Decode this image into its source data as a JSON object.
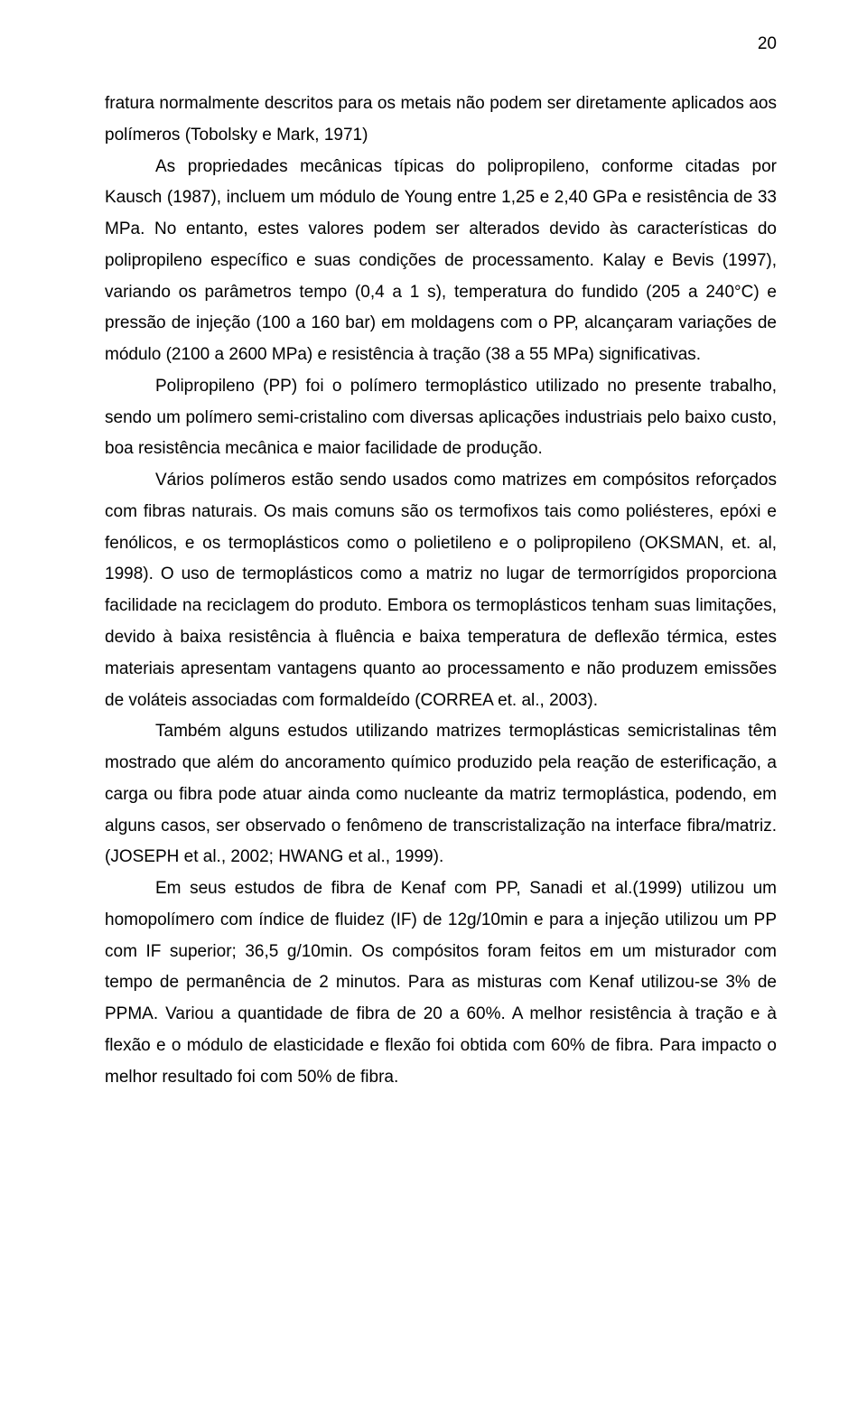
{
  "page_number": "20",
  "paragraphs": {
    "p1": "fratura normalmente descritos para os metais não podem ser diretamente aplicados aos polímeros (Tobolsky e Mark, 1971)",
    "p2": "As propriedades mecânicas típicas do polipropileno, conforme citadas por Kausch (1987), incluem um módulo de Young entre 1,25 e 2,40 GPa e resistência de 33 MPa. No entanto, estes valores podem ser alterados devido às características do polipropileno específico e suas condições de processamento. Kalay e Bevis (1997), variando os parâmetros tempo (0,4 a 1 s), temperatura do fundido (205 a 240°C) e pressão de injeção (100 a 160 bar) em moldagens com o PP, alcançaram variações de módulo (2100 a 2600 MPa) e resistência à tração (38 a 55 MPa) significativas.",
    "p3": "Polipropileno (PP) foi o polímero termoplástico utilizado no presente trabalho, sendo um  polímero semi-cristalino com diversas aplicações industriais pelo baixo custo, boa resistência mecânica e maior facilidade de produção.",
    "p4": "Vários polímeros estão sendo usados como matrizes em compósitos reforçados com fibras naturais. Os mais comuns são os termofixos tais como poliésteres, epóxi e fenólicos, e os termoplásticos como o polietileno e o polipropileno (OKSMAN, et. al, 1998). O uso de termoplásticos como a matriz no lugar de termorrígidos proporciona facilidade na reciclagem do produto. Embora os termoplásticos tenham suas limitações, devido à baixa resistência à fluência e baixa temperatura de deflexão térmica, estes materiais apresentam vantagens quanto ao processamento e não produzem emissões de voláteis associadas com formaldeído (CORREA et. al., 2003).",
    "p5": "Também alguns estudos utilizando matrizes termoplásticas semicristalinas têm mostrado que além do ancoramento químico produzido pela reação de esterificação, a carga ou fibra pode atuar ainda como nucleante da matriz termoplástica, podendo, em alguns casos, ser observado o fenômeno de transcristalização na interface fibra/matriz. (JOSEPH et al., 2002; HWANG et al., 1999).",
    "p6": "Em seus estudos de fibra de Kenaf com PP, Sanadi et al.(1999) utilizou um homopolímero com índice de fluidez (IF) de 12g/10min e para a injeção utilizou um PP com IF superior; 36,5 g/10min. Os compósitos foram feitos em um misturador com tempo de permanência de 2 minutos. Para as misturas com Kenaf utilizou-se 3% de PPMA. Variou a quantidade de fibra de 20 a 60%. A melhor resistência à tração e à flexão e o módulo de elasticidade e flexão  foi obtida com 60% de fibra. Para impacto o melhor resultado foi com 50% de fibra."
  }
}
